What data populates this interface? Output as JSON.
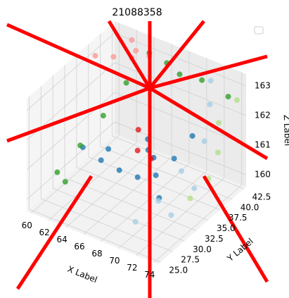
{
  "chart_data": {
    "type": "scatter3d",
    "title": "21088358",
    "x_label": "X Label",
    "y_label": "Y Label",
    "z_label": "Z Label",
    "xlim": [
      59.5,
      74.5
    ],
    "ylim": [
      24.5,
      43
    ],
    "zlim": [
      159.6,
      163.4
    ],
    "xticks": [
      60,
      62,
      64,
      66,
      68,
      70,
      72,
      74
    ],
    "yticks": [
      {
        "value": 25,
        "label": "25.0"
      },
      {
        "value": 27.5,
        "label": "27.5"
      },
      {
        "value": 30,
        "label": "30.0"
      },
      {
        "value": 32.5,
        "label": "32.5"
      },
      {
        "value": 35,
        "label": "35.0"
      },
      {
        "value": 37.5,
        "label": "37.5"
      },
      {
        "value": 40,
        "label": "40.0"
      },
      {
        "value": 42.5,
        "label": "42.5"
      }
    ],
    "zticks": [
      160,
      161,
      162,
      163
    ],
    "grid": true,
    "series": [
      {
        "color": "#1f78b4",
        "x": [
          64,
          65,
          66,
          67,
          68,
          69,
          70,
          71,
          72,
          66,
          68,
          70
        ],
        "y": [
          28,
          30,
          32,
          34,
          36,
          38,
          40,
          30,
          27,
          38,
          26,
          33
        ],
        "z": [
          161.8,
          161.2,
          160.7,
          160.3,
          160.2,
          160.6,
          161.2,
          162.0,
          162.8,
          160.9,
          162.5,
          160.1
        ]
      },
      {
        "color": "#33a02c",
        "x": [
          60,
          61,
          62,
          63,
          64,
          62,
          66,
          70,
          73,
          68
        ],
        "y": [
          30,
          33,
          36,
          39,
          42,
          28,
          42,
          42,
          42,
          41
        ],
        "z": [
          160.2,
          160.8,
          161.5,
          162.3,
          163,
          160.4,
          162.9,
          162.8,
          162.6,
          162.9
        ]
      },
      {
        "color": "#a6cee3",
        "x": [
          70,
          71,
          72,
          73,
          72,
          71,
          73,
          74
        ],
        "y": [
          28,
          31,
          34,
          37,
          40,
          42,
          30,
          33
        ],
        "z": [
          160.0,
          160.4,
          161.1,
          161.8,
          162.5,
          162.9,
          160.3,
          160.9
        ]
      },
      {
        "color": "#b2df8a",
        "x": [
          73,
          74,
          74,
          73,
          74
        ],
        "y": [
          34,
          36,
          38,
          40,
          42
        ],
        "z": [
          160.3,
          160.8,
          161.4,
          162.0,
          162.6
        ]
      },
      {
        "color": "#fb9a99",
        "x": [
          60,
          61,
          62,
          63,
          64,
          62
        ],
        "y": [
          38,
          40,
          42,
          41,
          42,
          42
        ],
        "z": [
          163,
          162.8,
          163.2,
          163.1,
          162.9,
          162.6
        ]
      },
      {
        "color": "#e31a1c",
        "x": [
          66,
          67,
          68
        ],
        "y": [
          36,
          34,
          35
        ],
        "z": [
          161.5,
          161.2,
          160.9
        ]
      }
    ]
  }
}
